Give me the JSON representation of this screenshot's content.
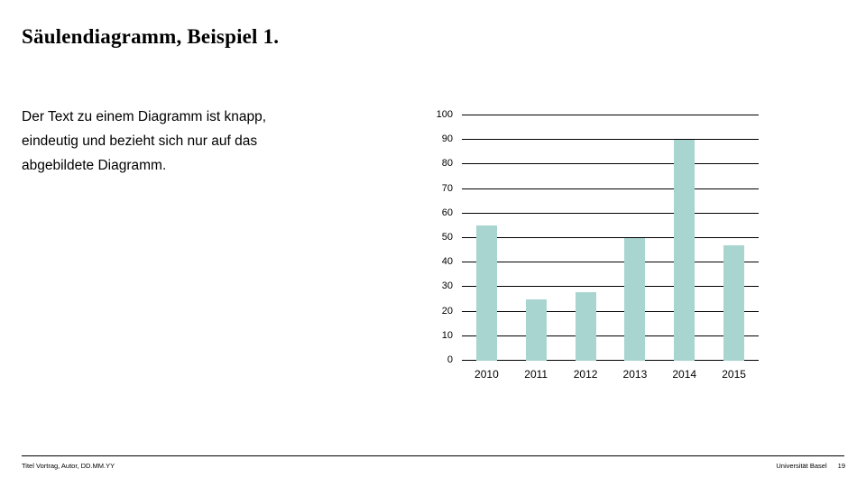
{
  "slide": {
    "title": "Säulendiagramm, Beispiel 1.",
    "body_lines": {
      "0": "Der Text zu einem Diagramm ist knapp,",
      "1": "eindeutig und bezieht sich nur auf das",
      "2": "abgebildete Diagramm."
    }
  },
  "chart_data": {
    "type": "bar",
    "categories": [
      "2010",
      "2011",
      "2012",
      "2013",
      "2014",
      "2015"
    ],
    "values": [
      55,
      25,
      28,
      50,
      90,
      47
    ],
    "title": "",
    "xlabel": "",
    "ylabel": "",
    "ylim": [
      0,
      100
    ],
    "ytick_step": 10,
    "grid": "horizontal",
    "legend": "none",
    "bar_color": "#a8d5d0",
    "gridline_color": "#000000",
    "tick_label_color": "#000000"
  },
  "footer": {
    "left_text": "Titel Vortrag, Autor, DD.MM.YY",
    "organization": "Universität Basel",
    "page_number": "19"
  }
}
